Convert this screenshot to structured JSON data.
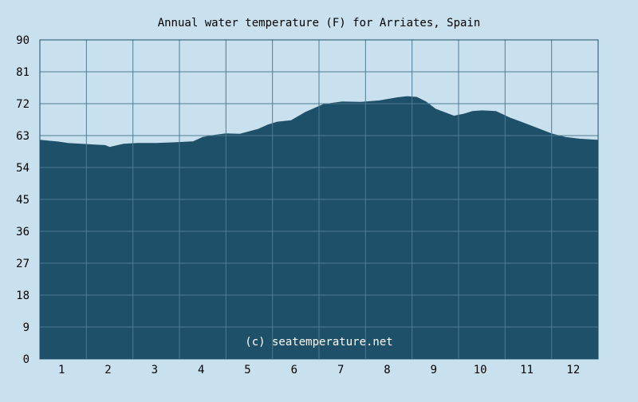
{
  "chart_data": {
    "type": "area",
    "title": "Annual water temperature (F) for Arriates, Spain",
    "xlabel": "",
    "ylabel": "",
    "watermark": "(c) seatemperature.net",
    "xlim": [
      0.5,
      12.5
    ],
    "ylim": [
      0,
      90
    ],
    "x_ticks": [
      1,
      2,
      3,
      4,
      5,
      6,
      7,
      8,
      9,
      10,
      11,
      12
    ],
    "x_tick_labels": [
      "1",
      "2",
      "3",
      "4",
      "5",
      "6",
      "7",
      "8",
      "9",
      "10",
      "11",
      "12"
    ],
    "y_ticks": [
      0,
      9,
      18,
      27,
      36,
      45,
      54,
      63,
      72,
      81,
      90
    ],
    "y_tick_labels": [
      "0",
      "9",
      "18",
      "27",
      "36",
      "45",
      "54",
      "63",
      "72",
      "81",
      "90"
    ],
    "grid": true,
    "series": [
      {
        "x": [
          0.5,
          0.9,
          1.1,
          1.5,
          1.9,
          2.0,
          2.3,
          2.6,
          3.0,
          3.4,
          3.8,
          4.0,
          4.2,
          4.5,
          4.8,
          5.2,
          5.4,
          5.6,
          5.9,
          6.2,
          6.6,
          7.0,
          7.4,
          7.8,
          8.2,
          8.4,
          8.6,
          8.8,
          9.0,
          9.4,
          9.6,
          9.8,
          10.0,
          10.3,
          10.6,
          10.9,
          11.2,
          11.5,
          11.8,
          12.1,
          12.5
        ],
        "y": [
          61.7,
          61.2,
          60.8,
          60.5,
          60.2,
          59.7,
          60.6,
          60.8,
          60.8,
          61.0,
          61.3,
          62.5,
          63.0,
          63.5,
          63.4,
          64.8,
          66.0,
          66.8,
          67.2,
          69.5,
          71.8,
          72.5,
          72.4,
          72.8,
          73.7,
          74.0,
          73.8,
          72.5,
          70.5,
          68.5,
          69.0,
          69.8,
          70.0,
          69.8,
          68.0,
          66.5,
          65.0,
          63.5,
          62.5,
          62.0,
          61.7
        ]
      }
    ],
    "colors": {
      "background": "#c9e1ee",
      "plot_background": "#c9e1ee",
      "area_fill": "#1f5069",
      "grid_line": "#4f7a94",
      "axis_line": "#1f5069"
    }
  }
}
